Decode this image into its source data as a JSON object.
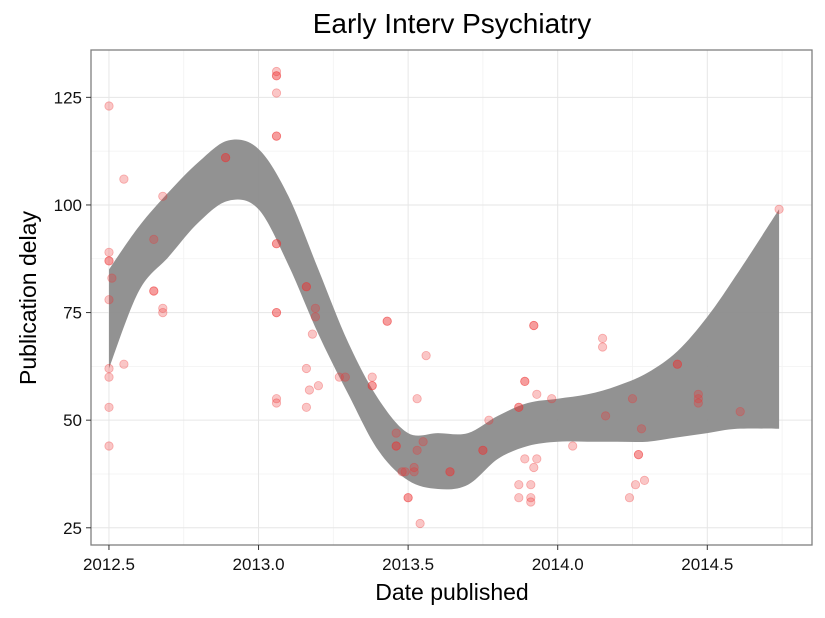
{
  "chart_data": {
    "type": "scatter",
    "title": "Early Interv Psychiatry",
    "xlabel": "Date published",
    "ylabel": "Publication delay",
    "xlim": [
      2012.44,
      2014.85
    ],
    "ylim": [
      21,
      136
    ],
    "x_ticks": [
      2012.5,
      2013.0,
      2013.5,
      2014.0,
      2014.5
    ],
    "x_tick_labels": [
      "2012.5",
      "2013.0",
      "2013.5",
      "2014.0",
      "2014.5"
    ],
    "y_ticks": [
      25,
      50,
      75,
      100,
      125
    ],
    "y_tick_labels": [
      "25",
      "50",
      "75",
      "100",
      "125"
    ],
    "grid": true,
    "point_color": "#ee3333",
    "band_color": "#8c8c8c",
    "points": [
      {
        "x": 2012.5,
        "y": 123
      },
      {
        "x": 2012.5,
        "y": 89
      },
      {
        "x": 2012.5,
        "y": 87
      },
      {
        "x": 2012.5,
        "y": 87
      },
      {
        "x": 2012.51,
        "y": 83
      },
      {
        "x": 2012.5,
        "y": 78
      },
      {
        "x": 2012.5,
        "y": 62
      },
      {
        "x": 2012.5,
        "y": 60
      },
      {
        "x": 2012.5,
        "y": 53
      },
      {
        "x": 2012.5,
        "y": 44
      },
      {
        "x": 2012.55,
        "y": 106
      },
      {
        "x": 2012.55,
        "y": 63
      },
      {
        "x": 2012.65,
        "y": 92
      },
      {
        "x": 2012.65,
        "y": 80
      },
      {
        "x": 2012.65,
        "y": 80
      },
      {
        "x": 2012.68,
        "y": 102
      },
      {
        "x": 2012.68,
        "y": 76
      },
      {
        "x": 2012.68,
        "y": 75
      },
      {
        "x": 2012.89,
        "y": 111
      },
      {
        "x": 2012.89,
        "y": 111
      },
      {
        "x": 2013.06,
        "y": 131
      },
      {
        "x": 2013.06,
        "y": 130
      },
      {
        "x": 2013.06,
        "y": 130
      },
      {
        "x": 2013.06,
        "y": 126
      },
      {
        "x": 2013.06,
        "y": 116
      },
      {
        "x": 2013.06,
        "y": 116
      },
      {
        "x": 2013.06,
        "y": 91
      },
      {
        "x": 2013.06,
        "y": 91
      },
      {
        "x": 2013.06,
        "y": 75
      },
      {
        "x": 2013.06,
        "y": 75
      },
      {
        "x": 2013.06,
        "y": 55
      },
      {
        "x": 2013.06,
        "y": 54
      },
      {
        "x": 2013.16,
        "y": 81
      },
      {
        "x": 2013.16,
        "y": 81
      },
      {
        "x": 2013.19,
        "y": 76
      },
      {
        "x": 2013.19,
        "y": 74
      },
      {
        "x": 2013.18,
        "y": 70
      },
      {
        "x": 2013.16,
        "y": 62
      },
      {
        "x": 2013.17,
        "y": 57
      },
      {
        "x": 2013.2,
        "y": 58
      },
      {
        "x": 2013.16,
        "y": 53
      },
      {
        "x": 2013.27,
        "y": 60
      },
      {
        "x": 2013.29,
        "y": 60
      },
      {
        "x": 2013.38,
        "y": 60
      },
      {
        "x": 2013.38,
        "y": 58
      },
      {
        "x": 2013.38,
        "y": 58
      },
      {
        "x": 2013.43,
        "y": 73
      },
      {
        "x": 2013.43,
        "y": 73
      },
      {
        "x": 2013.46,
        "y": 47
      },
      {
        "x": 2013.46,
        "y": 44
      },
      {
        "x": 2013.46,
        "y": 44
      },
      {
        "x": 2013.48,
        "y": 38
      },
      {
        "x": 2013.49,
        "y": 38
      },
      {
        "x": 2013.5,
        "y": 32
      },
      {
        "x": 2013.5,
        "y": 32
      },
      {
        "x": 2013.52,
        "y": 39
      },
      {
        "x": 2013.52,
        "y": 38
      },
      {
        "x": 2013.53,
        "y": 43
      },
      {
        "x": 2013.53,
        "y": 55
      },
      {
        "x": 2013.55,
        "y": 45
      },
      {
        "x": 2013.56,
        "y": 65
      },
      {
        "x": 2013.54,
        "y": 26
      },
      {
        "x": 2013.64,
        "y": 38
      },
      {
        "x": 2013.64,
        "y": 38
      },
      {
        "x": 2013.75,
        "y": 43
      },
      {
        "x": 2013.75,
        "y": 43
      },
      {
        "x": 2013.77,
        "y": 50
      },
      {
        "x": 2013.87,
        "y": 53
      },
      {
        "x": 2013.87,
        "y": 53
      },
      {
        "x": 2013.89,
        "y": 59
      },
      {
        "x": 2013.89,
        "y": 59
      },
      {
        "x": 2013.87,
        "y": 35
      },
      {
        "x": 2013.87,
        "y": 32
      },
      {
        "x": 2013.89,
        "y": 41
      },
      {
        "x": 2013.91,
        "y": 32
      },
      {
        "x": 2013.91,
        "y": 31
      },
      {
        "x": 2013.91,
        "y": 35
      },
      {
        "x": 2013.92,
        "y": 39
      },
      {
        "x": 2013.93,
        "y": 41
      },
      {
        "x": 2013.92,
        "y": 72
      },
      {
        "x": 2013.92,
        "y": 72
      },
      {
        "x": 2013.93,
        "y": 56
      },
      {
        "x": 2013.98,
        "y": 55
      },
      {
        "x": 2014.05,
        "y": 44
      },
      {
        "x": 2014.15,
        "y": 69
      },
      {
        "x": 2014.15,
        "y": 67
      },
      {
        "x": 2014.16,
        "y": 51
      },
      {
        "x": 2014.25,
        "y": 55
      },
      {
        "x": 2014.26,
        "y": 35
      },
      {
        "x": 2014.24,
        "y": 32
      },
      {
        "x": 2014.27,
        "y": 42
      },
      {
        "x": 2014.27,
        "y": 42
      },
      {
        "x": 2014.28,
        "y": 48
      },
      {
        "x": 2014.29,
        "y": 36
      },
      {
        "x": 2014.4,
        "y": 63
      },
      {
        "x": 2014.4,
        "y": 63
      },
      {
        "x": 2014.47,
        "y": 56
      },
      {
        "x": 2014.47,
        "y": 55
      },
      {
        "x": 2014.47,
        "y": 54
      },
      {
        "x": 2014.61,
        "y": 52
      },
      {
        "x": 2014.74,
        "y": 99
      }
    ],
    "band": {
      "x": [
        2012.5,
        2012.6,
        2012.7,
        2012.8,
        2012.9,
        2013.0,
        2013.1,
        2013.2,
        2013.3,
        2013.4,
        2013.5,
        2013.6,
        2013.7,
        2013.8,
        2013.9,
        2014.0,
        2014.1,
        2014.2,
        2014.3,
        2014.4,
        2014.5,
        2014.6,
        2014.74
      ],
      "upper": [
        85,
        95,
        103,
        110,
        115,
        113,
        102,
        85,
        68,
        55,
        47,
        47,
        47,
        51,
        54,
        55,
        56,
        58,
        61,
        66,
        74,
        84,
        99
      ],
      "lower": [
        62,
        80,
        88,
        96,
        101,
        99,
        86,
        70,
        56,
        43,
        36,
        34,
        35,
        41,
        44,
        45,
        45,
        45,
        45,
        46,
        47,
        48,
        48
      ]
    }
  }
}
